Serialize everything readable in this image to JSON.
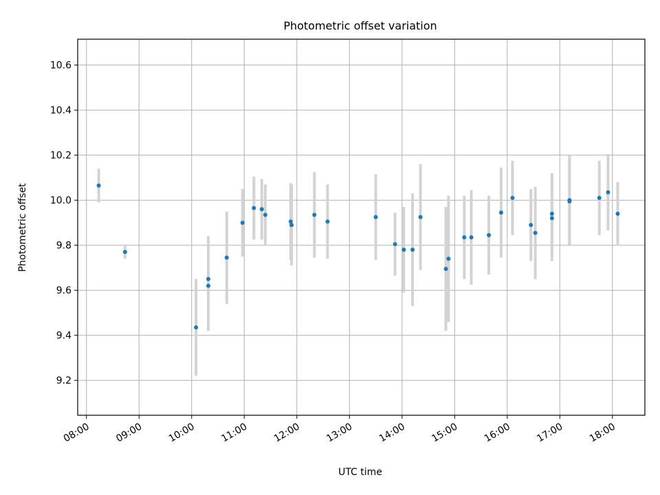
{
  "chart_data": {
    "type": "scatter",
    "title": "Photometric offset variation",
    "xlabel": "UTC time",
    "ylabel": "Photometric offset",
    "xlim": [
      "07:50",
      "18:37"
    ],
    "ylim": [
      9.045,
      10.715
    ],
    "x_ticks": [
      "08:00",
      "09:00",
      "10:00",
      "11:00",
      "12:00",
      "13:00",
      "14:00",
      "15:00",
      "16:00",
      "17:00",
      "18:00"
    ],
    "y_ticks": [
      9.2,
      9.4,
      9.6,
      9.8,
      10.0,
      10.2,
      10.4,
      10.6
    ],
    "grid": true,
    "marker_color": "#1f77b4",
    "errorbar_color": "#d3d3d3",
    "points": [
      {
        "x": "08:14",
        "y": 10.065,
        "err": 0.075
      },
      {
        "x": "08:44",
        "y": 9.77,
        "err": 0.03
      },
      {
        "x": "10:05",
        "y": 9.435,
        "err": 0.215
      },
      {
        "x": "10:19",
        "y": 9.65,
        "err": 0.19
      },
      {
        "x": "10:19",
        "y": 9.62,
        "err": 0.2
      },
      {
        "x": "10:40",
        "y": 9.745,
        "err": 0.205
      },
      {
        "x": "10:58",
        "y": 9.9,
        "err": 0.15
      },
      {
        "x": "11:11",
        "y": 9.965,
        "err": 0.14
      },
      {
        "x": "11:20",
        "y": 9.96,
        "err": 0.135
      },
      {
        "x": "11:24",
        "y": 9.935,
        "err": 0.135
      },
      {
        "x": "11:53",
        "y": 9.905,
        "err": 0.17
      },
      {
        "x": "11:54",
        "y": 9.89,
        "err": 0.18
      },
      {
        "x": "12:20",
        "y": 9.935,
        "err": 0.19
      },
      {
        "x": "12:35",
        "y": 9.905,
        "err": 0.165
      },
      {
        "x": "13:30",
        "y": 9.925,
        "err": 0.19
      },
      {
        "x": "13:52",
        "y": 9.805,
        "err": 0.14
      },
      {
        "x": "14:02",
        "y": 9.78,
        "err": 0.19
      },
      {
        "x": "14:12",
        "y": 9.78,
        "err": 0.25
      },
      {
        "x": "14:21",
        "y": 9.925,
        "err": 0.235
      },
      {
        "x": "14:50",
        "y": 9.695,
        "err": 0.275
      },
      {
        "x": "14:53",
        "y": 9.74,
        "err": 0.28
      },
      {
        "x": "15:11",
        "y": 9.835,
        "err": 0.185
      },
      {
        "x": "15:19",
        "y": 9.835,
        "err": 0.21
      },
      {
        "x": "15:39",
        "y": 9.845,
        "err": 0.175
      },
      {
        "x": "15:53",
        "y": 9.945,
        "err": 0.2
      },
      {
        "x": "16:06",
        "y": 10.01,
        "err": 0.165
      },
      {
        "x": "16:27",
        "y": 9.89,
        "err": 0.16
      },
      {
        "x": "16:32",
        "y": 9.855,
        "err": 0.205
      },
      {
        "x": "16:51",
        "y": 9.94,
        "err": 0.18
      },
      {
        "x": "16:51",
        "y": 9.92,
        "err": 0.19
      },
      {
        "x": "17:11",
        "y": 10.0,
        "err": 0.2
      },
      {
        "x": "17:11",
        "y": 9.995,
        "err": 0.19
      },
      {
        "x": "17:45",
        "y": 10.01,
        "err": 0.165
      },
      {
        "x": "17:55",
        "y": 10.035,
        "err": 0.17
      },
      {
        "x": "18:06",
        "y": 9.94,
        "err": 0.14
      }
    ]
  }
}
